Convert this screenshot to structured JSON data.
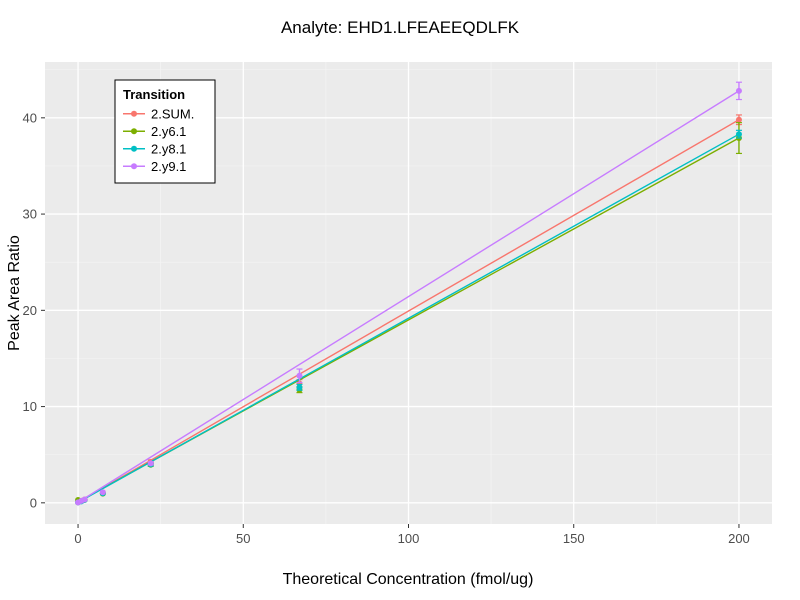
{
  "title": "Analyte: EHD1.LFEAEEQDLFK",
  "chart_data": {
    "type": "scatter",
    "title": "Analyte: EHD1.LFEAEEQDLFK",
    "xlabel": "Theoretical Concentration (fmol/ug)",
    "ylabel": "Peak Area Ratio",
    "legend_title": "Transition",
    "legend_position": "top-left-inside",
    "grid": true,
    "panel_bg": "#EBEBEB",
    "grid_major_color": "#FFFFFF",
    "grid_minor_color": "#F4F4F4",
    "tick_label_color": "#4D4D4D",
    "tick_mark_color": "#333333",
    "xlim": [
      -10,
      210
    ],
    "ylim": [
      -2.2,
      45.8
    ],
    "x_ticks": [
      0,
      50,
      100,
      150,
      200
    ],
    "x_minor_ticks": [
      25,
      75,
      125,
      175
    ],
    "y_ticks": [
      0,
      10,
      20,
      30,
      40
    ],
    "y_minor_ticks": [
      5,
      15,
      25,
      35,
      45
    ],
    "series": [
      {
        "name": "2.SUM.",
        "color": "#F8766D",
        "x": [
          0,
          1,
          2,
          7.5,
          22,
          67,
          200
        ],
        "y": [
          0.05,
          0.2,
          0.35,
          1.05,
          4.25,
          12.4,
          39.8
        ],
        "yerr": [
          0,
          0,
          0,
          0,
          0.2,
          0.4,
          0.5
        ],
        "fit_line": {
          "x0": 0,
          "y0": 0.05,
          "x1": 200,
          "y1": 39.8
        }
      },
      {
        "name": "2.y6.1",
        "color": "#7CAE00",
        "x": [
          0,
          1,
          2,
          7.5,
          22,
          67,
          200
        ],
        "y": [
          0.3,
          0.2,
          0.3,
          0.95,
          3.95,
          11.75,
          37.9
        ],
        "yerr": [
          0,
          0,
          0,
          0,
          0.15,
          0.3,
          1.6
        ],
        "fit_line": {
          "x0": 0,
          "y0": 0.1,
          "x1": 200,
          "y1": 37.9
        }
      },
      {
        "name": "2.y8.1",
        "color": "#00BFC4",
        "x": [
          0,
          1,
          2,
          7.5,
          22,
          67,
          200
        ],
        "y": [
          0.05,
          0.15,
          0.3,
          1.0,
          4.0,
          12.0,
          38.3
        ],
        "yerr": [
          0,
          0,
          0,
          0,
          0.15,
          0.3,
          0.4
        ],
        "fit_line": {
          "x0": 0,
          "y0": 0.05,
          "x1": 200,
          "y1": 38.3
        }
      },
      {
        "name": "2.y9.1",
        "color": "#C77CFF",
        "x": [
          0,
          1,
          2,
          7.5,
          22,
          67,
          200
        ],
        "y": [
          0.05,
          0.2,
          0.35,
          1.1,
          4.1,
          13.2,
          42.8
        ],
        "yerr": [
          0,
          0,
          0,
          0,
          0.15,
          0.7,
          0.9
        ],
        "fit_line": {
          "x0": 0,
          "y0": 0.05,
          "x1": 200,
          "y1": 42.8
        }
      }
    ]
  }
}
